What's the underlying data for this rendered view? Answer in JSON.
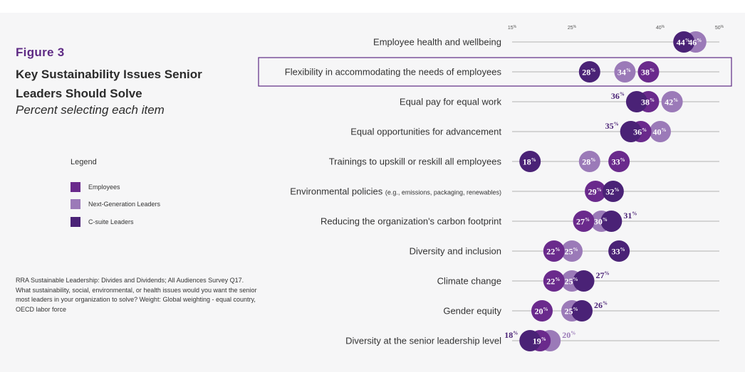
{
  "figure_label": "Figure 3",
  "title": "Key Sustainability Issues Senior Leaders Should Solve",
  "subtitle": "Percent selecting each item",
  "legend": {
    "title": "Legend",
    "items": [
      {
        "label": "Employees",
        "color": "#6a2a8c"
      },
      {
        "label": "Next-Generation Leaders",
        "color": "#9b7ab8"
      },
      {
        "label": "C-suite Leaders",
        "color": "#4a2276"
      }
    ]
  },
  "source_note": "RRA Sustainable Leadership: Divides and Dividends; All Audiences Survey Q17. What sustainability, social, environmental, or health issues would you want the senior most leaders in your organization to solve? Weight: Global weighting - equal country, OECD labor force",
  "chart_data": {
    "type": "scatter",
    "subtype": "dot-plot",
    "x_ticks": [
      15,
      25,
      40,
      50
    ],
    "x_tick_suffix": "%",
    "xlim": [
      15,
      50
    ],
    "series_colors": {
      "employees": "#6a2a8c",
      "next_gen": "#9b7ab8",
      "csuite": "#4a2276"
    },
    "highlighted_row": "Flexibility in accommodating the needs of employees",
    "highlight_color": "#5e2a84",
    "rows": [
      {
        "label": "Employee health and wellbeing",
        "employees": 44,
        "next_gen": 46,
        "csuite": 44
      },
      {
        "label": "Flexibility in accommodating the needs of employees",
        "employees": 38,
        "next_gen": 34,
        "csuite": 28
      },
      {
        "label": "Equal pay for equal work",
        "employees": 38,
        "next_gen": 42,
        "csuite": 36
      },
      {
        "label": "Equal opportunities for advancement",
        "employees": 36,
        "next_gen": 40,
        "csuite": 35
      },
      {
        "label": "Trainings to upskill or reskill all employees",
        "employees": 33,
        "next_gen": 28,
        "csuite": 18
      },
      {
        "label": "Environmental policies",
        "label_note": "(e.g., emissions, packaging, renewables)",
        "employees": 29,
        "next_gen": 29,
        "csuite": 32
      },
      {
        "label": "Reducing the organization's carbon footprint",
        "employees": 27,
        "next_gen": 30,
        "csuite": 31
      },
      {
        "label": "Diversity and inclusion",
        "employees": 22,
        "next_gen": 25,
        "csuite": 33
      },
      {
        "label": "Climate change",
        "employees": 22,
        "next_gen": 25,
        "csuite": 27
      },
      {
        "label": "Gender equity",
        "employees": 20,
        "next_gen": 25,
        "csuite": 26
      },
      {
        "label": "Diversity at the senior leadership level",
        "employees": 19,
        "next_gen": 20,
        "csuite": 18
      }
    ]
  }
}
